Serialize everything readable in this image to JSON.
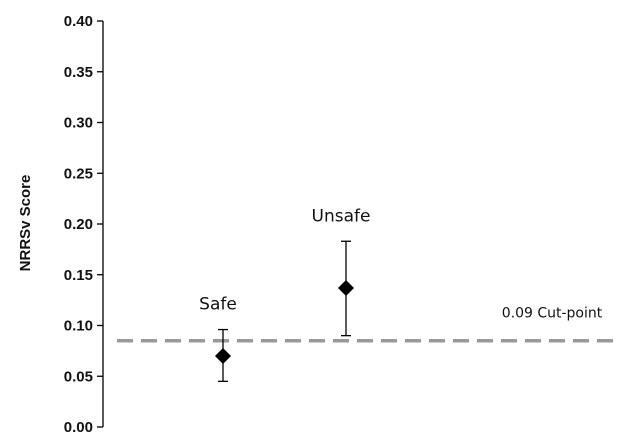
{
  "chart_data": {
    "type": "scatter",
    "title": "",
    "xlabel": "",
    "ylabel": "NRRSv Score",
    "ylim": [
      0.0,
      0.4
    ],
    "yticks": [
      "0.00",
      "0.05",
      "0.10",
      "0.15",
      "0.20",
      "0.25",
      "0.30",
      "0.35",
      "0.40"
    ],
    "grid": false,
    "categories": [
      "Safe",
      "Unsafe"
    ],
    "values": [
      0.07,
      0.137
    ],
    "error_low": [
      0.045,
      0.09
    ],
    "error_high": [
      0.096,
      0.183
    ],
    "marker": "diamond",
    "marker_color": "#000000",
    "reference_line": {
      "value": 0.085,
      "label": "0.09 Cut-point",
      "style": "dashed",
      "color": "#999999"
    }
  }
}
